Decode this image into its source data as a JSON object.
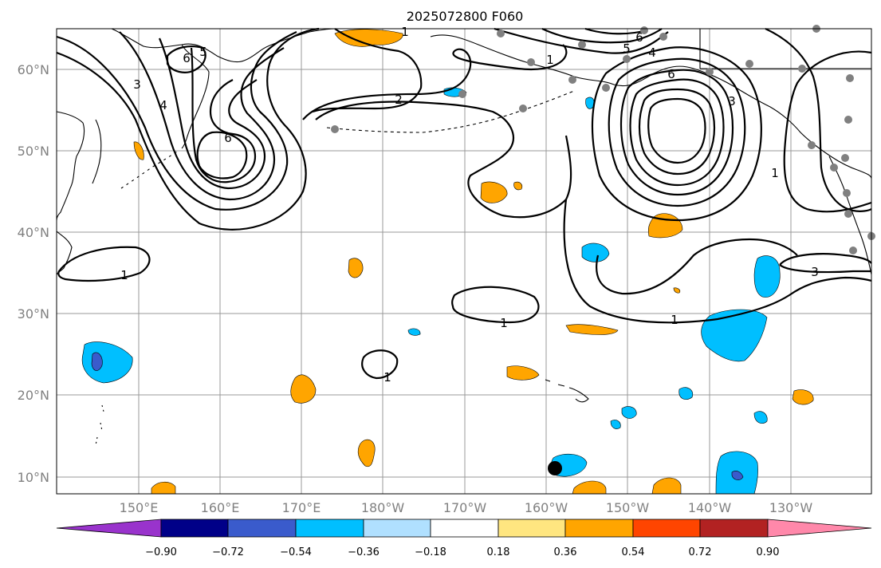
{
  "title": "2025072800 F060",
  "map": {
    "lat_labels": [
      "60°N",
      "50°N",
      "40°N",
      "30°N",
      "20°N",
      "10°N"
    ],
    "lon_labels": [
      "150°E",
      "160°E",
      "170°E",
      "180°W",
      "170°W",
      "160°W",
      "150°W",
      "140°W",
      "130°W"
    ],
    "grid": true,
    "contour_color": "#000000",
    "land_outline_color": "#000000",
    "station_color": "#808080",
    "marker_color": "#000000",
    "contour_labels": [
      "1",
      "6",
      "5",
      "4",
      "3",
      "6",
      "2",
      "5",
      "6",
      "4",
      "6",
      "3",
      "1",
      "3",
      "1",
      "1",
      "1",
      "1",
      "1"
    ]
  },
  "colorbar": {
    "tick_labels": [
      "−0.90",
      "−0.72",
      "−0.54",
      "−0.36",
      "−0.18",
      "0.18",
      "0.36",
      "0.54",
      "0.72",
      "0.90"
    ],
    "colors": [
      "#9933cc",
      "#000088",
      "#3a5bcc",
      "#00bfff",
      "#b0e0ff",
      "#ffffff",
      "#ffe680",
      "#ffa500",
      "#ff4500",
      "#b22222",
      "#ff88aa"
    ]
  }
}
